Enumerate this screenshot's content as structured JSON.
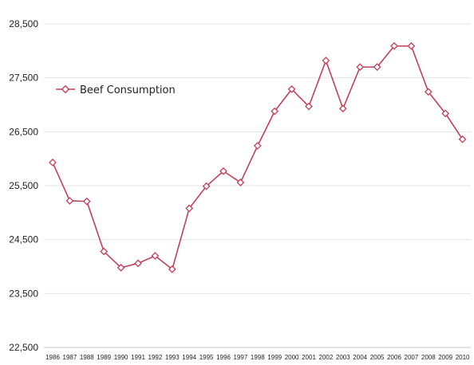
{
  "chart_data": {
    "type": "line",
    "title": "",
    "xlabel": "",
    "ylabel": "",
    "categories": [
      "1986",
      "1987",
      "1988",
      "1989",
      "1990",
      "1991",
      "1992",
      "1993",
      "1994",
      "1995",
      "1996",
      "1997",
      "1998",
      "1999",
      "2000",
      "2001",
      "2002",
      "2003",
      "2004",
      "2005",
      "2006",
      "2007",
      "2008",
      "2009",
      "2010"
    ],
    "series": [
      {
        "name": "Beef Consumption",
        "color": "#c0405a",
        "values": [
          25930,
          25220,
          25210,
          24280,
          23980,
          24060,
          24200,
          23950,
          25080,
          25490,
          25770,
          25560,
          26240,
          26880,
          27290,
          26970,
          27820,
          26930,
          27700,
          27700,
          28090,
          28090,
          27240,
          26840,
          26360
        ]
      }
    ],
    "ylim": [
      22500,
      28500
    ],
    "yticks": [
      "22,500",
      "23,500",
      "24,500",
      "25,500",
      "26,500",
      "27,500",
      "28,500"
    ],
    "ytick_values": [
      22500,
      23500,
      24500,
      25500,
      26500,
      27500,
      28500
    ],
    "grid": true,
    "legend": "top-left"
  }
}
